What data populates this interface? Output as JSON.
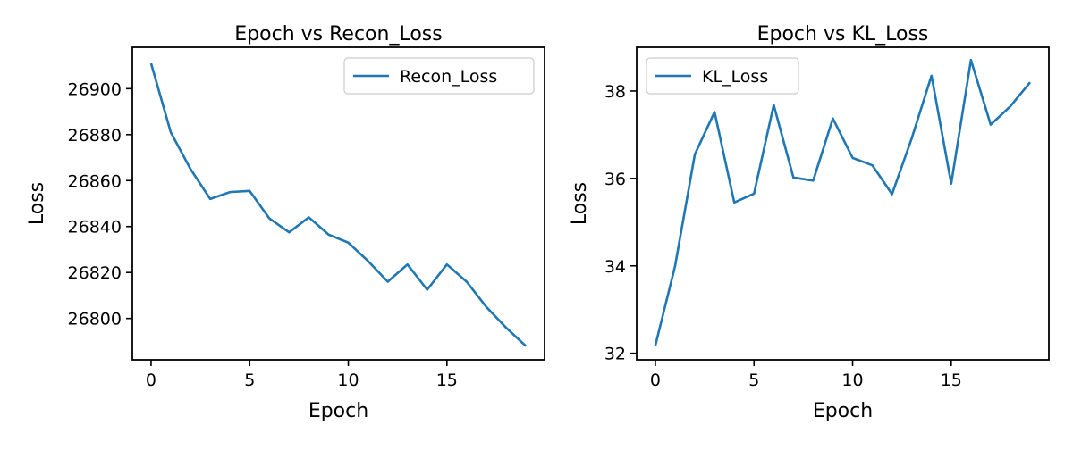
{
  "chart_data": [
    {
      "type": "line",
      "title": "Epoch vs Recon_Loss",
      "xlabel": "Epoch",
      "ylabel": "Loss",
      "x": [
        0,
        1,
        2,
        3,
        4,
        5,
        6,
        7,
        8,
        9,
        10,
        11,
        12,
        13,
        14,
        15,
        16,
        17,
        18,
        19
      ],
      "series": [
        {
          "name": "Recon_Loss",
          "color": "#1f77b4",
          "values": [
            26911,
            26881,
            26865,
            26852,
            26855,
            26855.5,
            26843.5,
            26837.5,
            26844,
            26836.5,
            26833,
            26825,
            26816,
            26823.5,
            26812.5,
            26823.5,
            26816,
            26805,
            26796,
            26788
          ]
        }
      ],
      "xlim": [
        -0.95,
        19.95
      ],
      "ylim": [
        26782,
        26918
      ],
      "xticks": [
        0,
        5,
        10,
        15
      ],
      "xtick_labels": [
        "0",
        "5",
        "10",
        "15"
      ],
      "yticks": [
        26800,
        26820,
        26840,
        26860,
        26880,
        26900
      ],
      "ytick_labels": [
        "26800",
        "26820",
        "26840",
        "26860",
        "26880",
        "26900"
      ],
      "grid": false,
      "legend": "top-right"
    },
    {
      "type": "line",
      "title": "Epoch vs KL_Loss",
      "xlabel": "Epoch",
      "ylabel": "Loss",
      "x": [
        0,
        1,
        2,
        3,
        4,
        5,
        6,
        7,
        8,
        9,
        10,
        11,
        12,
        13,
        14,
        15,
        16,
        17,
        18,
        19
      ],
      "series": [
        {
          "name": "KL_Loss",
          "color": "#1f77b4",
          "values": [
            32.18,
            34.0,
            36.55,
            37.52,
            35.45,
            35.65,
            37.68,
            36.02,
            35.95,
            37.37,
            36.47,
            36.3,
            35.64,
            36.92,
            38.35,
            35.88,
            38.71,
            37.23,
            37.65,
            38.2
          ]
        }
      ],
      "xlim": [
        -0.95,
        19.95
      ],
      "ylim": [
        31.85,
        39.0
      ],
      "xticks": [
        0,
        5,
        10,
        15
      ],
      "xtick_labels": [
        "0",
        "5",
        "10",
        "15"
      ],
      "yticks": [
        32,
        34,
        36,
        38
      ],
      "ytick_labels": [
        "32",
        "34",
        "36",
        "38"
      ],
      "grid": false,
      "legend": "top-left"
    }
  ]
}
